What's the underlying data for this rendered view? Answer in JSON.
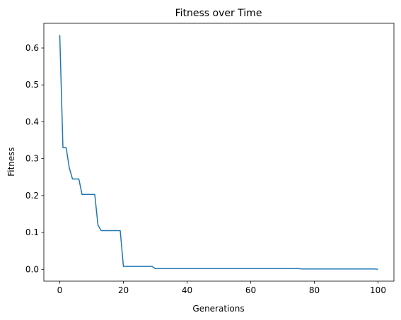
{
  "chart_data": {
    "type": "line",
    "title": "Fitness over Time",
    "xlabel": "Generations",
    "ylabel": "Fitness",
    "xlim": [
      -5,
      105
    ],
    "ylim": [
      -0.032,
      0.667
    ],
    "xticks": [
      0,
      20,
      40,
      60,
      80,
      100
    ],
    "xtick_labels": [
      "0",
      "20",
      "40",
      "60",
      "80",
      "100"
    ],
    "yticks": [
      0.0,
      0.1,
      0.2,
      0.3,
      0.4,
      0.5,
      0.6
    ],
    "ytick_labels": [
      "0.0",
      "0.1",
      "0.2",
      "0.3",
      "0.4",
      "0.5",
      "0.6"
    ],
    "grid": false,
    "legend": false,
    "series": [
      {
        "color": "#1f77b4",
        "x": [
          0,
          1,
          2,
          3,
          4,
          5,
          6,
          7,
          8,
          9,
          10,
          11,
          12,
          13,
          14,
          15,
          16,
          17,
          18,
          19,
          20,
          21,
          22,
          23,
          24,
          25,
          26,
          27,
          28,
          29,
          30,
          40,
          50,
          60,
          70,
          75,
          76,
          80,
          90,
          99,
          100
        ],
        "y": [
          0.635,
          0.33,
          0.33,
          0.275,
          0.245,
          0.245,
          0.245,
          0.203,
          0.203,
          0.203,
          0.203,
          0.203,
          0.12,
          0.105,
          0.105,
          0.105,
          0.105,
          0.105,
          0.105,
          0.105,
          0.008,
          0.008,
          0.008,
          0.008,
          0.008,
          0.008,
          0.008,
          0.008,
          0.008,
          0.008,
          0.002,
          0.002,
          0.002,
          0.002,
          0.002,
          0.002,
          0.001,
          0.001,
          0.001,
          0.001,
          0.0
        ]
      }
    ]
  }
}
